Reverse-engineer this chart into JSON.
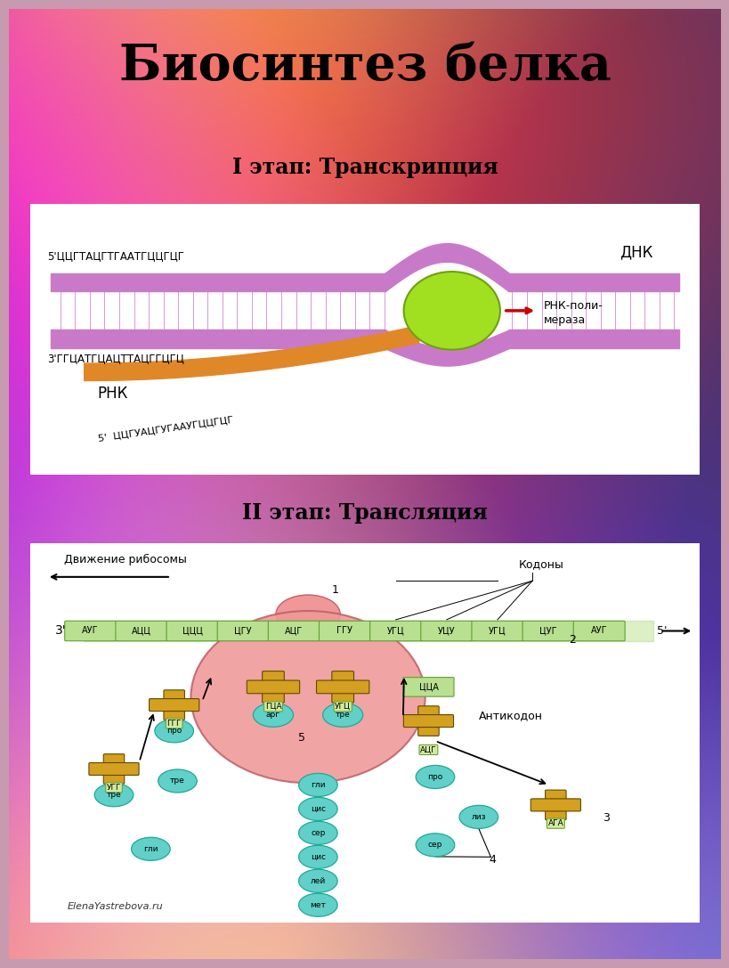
{
  "title": "Биосинтез белка",
  "stage1_title": "I этап: Транскрипция",
  "stage2_title": "II этап: Трансляция",
  "fig_width": 8.0,
  "fig_height": 10.67,
  "dpi": 100,
  "transcription": {
    "dna_top_seq": "5'ЦЦГТАЦГТГААТГЦЦГЦГ",
    "dna_bot_seq": "3'ГГЦАТГЦАЦТТАЦГГЦГЦ",
    "rna_seq": "5'  ЦЦГУАЦГУГААУГЦЦГЦГ",
    "dna_label": "ДНК",
    "rna_label": "РНК",
    "enzyme_label": "РНК-поли-\nмераза",
    "dna_color": "#c87ac8",
    "rna_color": "#e08828",
    "enzyme_color": "#a0e020",
    "hatch_color": "#e0a0e0"
  },
  "translation": {
    "ribosome_label": "Движение рибосомы",
    "codons_label": "Кодоны",
    "anticodon_label": "Антикодон",
    "ribosome_color": "#f09898",
    "amino_color": "#60d0c8",
    "trna_color": "#d4a020",
    "codon_bg": "#b8e090",
    "strand_codons": [
      "АУГ",
      "АЦЦ",
      "ЦЦЦ",
      "ЦГУ",
      "АЦГ",
      "ГГУ",
      "УГЦ",
      "УЦУ",
      "УГЦ",
      "ЦУГ",
      "АУГ"
    ],
    "inside_codons": [
      "ГЦА",
      "УГЦ"
    ],
    "inside_amino": [
      "арг",
      "тре"
    ],
    "chain_amino": [
      "гли",
      "цис",
      "сер",
      "цис",
      "лей",
      "мет"
    ],
    "watermark": "ElenaYastrebova.ru"
  }
}
